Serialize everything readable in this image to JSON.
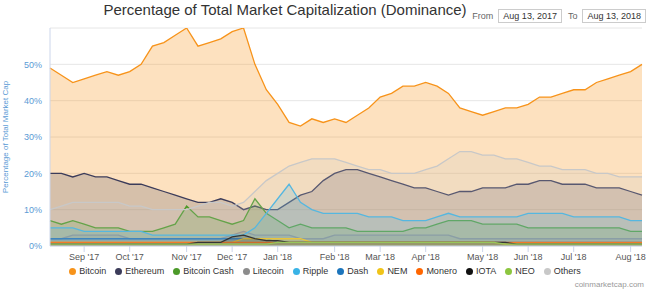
{
  "chart_data": {
    "type": "area",
    "title": "Percentage of Total Market Capitalization (Dominance)",
    "from_label": "From",
    "from_date": "Aug 13, 2017",
    "to_label": "To",
    "to_date": "Aug 13, 2018",
    "y_label": "Percentage of Total Market Cap",
    "credit": "coinmarketcap.com",
    "grid": true,
    "legend": "bottom",
    "categories": [
      null,
      null,
      null,
      "Sep '17",
      null,
      null,
      null,
      "Oct '17",
      null,
      null,
      null,
      null,
      "Nov '17",
      null,
      null,
      null,
      "Dec '17",
      null,
      null,
      null,
      "Jan '18",
      null,
      null,
      null,
      null,
      "Feb '18",
      null,
      null,
      null,
      "Mar '18",
      null,
      null,
      null,
      "Apr '18",
      null,
      null,
      null,
      null,
      "May '18",
      null,
      null,
      null,
      "Jun '18",
      null,
      null,
      null,
      "Jul '18",
      null,
      null,
      null,
      null,
      "Aug '18",
      null
    ],
    "ylim": [
      0,
      60
    ],
    "yticks": [
      {
        "value": 0,
        "label": "0%"
      },
      {
        "value": 10,
        "label": "10%"
      },
      {
        "value": 20,
        "label": "20%"
      },
      {
        "value": 30,
        "label": "30%"
      },
      {
        "value": 40,
        "label": "40%"
      },
      {
        "value": 50,
        "label": "50%"
      }
    ],
    "series": [
      {
        "name": "Bitcoin",
        "color": "#f7931a",
        "values": [
          49,
          47,
          45,
          46,
          47,
          48,
          47,
          48,
          50,
          55,
          56,
          58,
          60,
          55,
          56,
          57,
          59,
          60,
          50,
          43,
          39,
          34,
          33,
          35,
          34,
          35,
          34,
          36,
          38,
          41,
          42,
          44,
          44,
          45,
          44,
          42,
          38,
          37,
          36,
          37,
          38,
          38,
          39,
          41,
          41,
          42,
          43,
          43,
          45,
          46,
          47,
          48,
          50
        ]
      },
      {
        "name": "Ethereum",
        "color": "#3c3c5a",
        "values": [
          20,
          20,
          19,
          20,
          19,
          19,
          18,
          17,
          17,
          16,
          15,
          14,
          13,
          12,
          12,
          13,
          12,
          10,
          11,
          10,
          10,
          12,
          14,
          15,
          18,
          20,
          21,
          21,
          20,
          19,
          18,
          17,
          16,
          16,
          15,
          14,
          15,
          15,
          16,
          16,
          16,
          17,
          17,
          18,
          18,
          17,
          17,
          17,
          16,
          16,
          16,
          15,
          14
        ]
      },
      {
        "name": "Bitcoin Cash",
        "color": "#4c9a2a",
        "values": [
          7,
          6,
          7,
          6,
          5,
          5,
          5,
          4,
          4,
          4,
          5,
          6,
          11,
          8,
          8,
          7,
          6,
          7,
          13,
          9,
          7,
          5,
          6,
          5,
          5,
          5,
          5,
          4,
          4,
          4,
          4,
          4,
          5,
          5,
          6,
          7,
          7,
          7,
          6,
          6,
          6,
          6,
          5,
          5,
          5,
          5,
          5,
          5,
          5,
          5,
          5,
          4,
          4
        ]
      },
      {
        "name": "Litecoin",
        "color": "#8c8c8c",
        "values": [
          2,
          2,
          3,
          3,
          3,
          3,
          3,
          2,
          2,
          2,
          2,
          2,
          2,
          2,
          2,
          2,
          3,
          4,
          3,
          3,
          3,
          3,
          2,
          2,
          2,
          3,
          3,
          3,
          3,
          3,
          3,
          3,
          3,
          3,
          3,
          3,
          2,
          2,
          2,
          2,
          2,
          2,
          2,
          2,
          2,
          2,
          2,
          2,
          2,
          2,
          2,
          2,
          2
        ]
      },
      {
        "name": "Ripple",
        "color": "#39b3e6",
        "values": [
          5,
          5,
          5,
          4,
          4,
          4,
          4,
          4,
          4,
          3,
          3,
          3,
          3,
          3,
          3,
          3,
          3,
          3,
          5,
          9,
          13,
          17,
          12,
          10,
          9,
          9,
          9,
          9,
          8,
          8,
          8,
          7,
          7,
          7,
          8,
          9,
          8,
          8,
          8,
          8,
          8,
          8,
          9,
          9,
          9,
          9,
          8,
          8,
          8,
          8,
          8,
          7,
          7
        ]
      },
      {
        "name": "Dash",
        "color": "#1c75bc",
        "values": [
          2,
          2,
          2,
          2,
          2,
          2,
          2,
          2,
          2,
          2,
          2,
          2,
          2,
          2,
          2,
          2,
          2,
          2,
          2,
          2,
          1,
          1,
          1,
          1,
          1,
          1,
          1,
          1,
          1,
          1,
          1,
          1,
          1,
          1,
          1,
          1,
          1,
          1,
          1,
          1,
          1,
          1,
          1,
          1,
          1,
          1,
          1,
          1,
          1,
          1,
          1,
          1,
          1
        ]
      },
      {
        "name": "NEM",
        "color": "#f0c419",
        "values": [
          1,
          1,
          1,
          1,
          1,
          1,
          1,
          1,
          1,
          1,
          1,
          1,
          1,
          1,
          1,
          1,
          1,
          2,
          2,
          2,
          2,
          2,
          2,
          1,
          1,
          1,
          1,
          1,
          1,
          1,
          1,
          1,
          1,
          1,
          1,
          1,
          1,
          1,
          1,
          1,
          0.5,
          0.5,
          0.5,
          0.5,
          0.5,
          0.5,
          0.5,
          0.5,
          0.5,
          0.5,
          0.5,
          0.5,
          0.5
        ]
      },
      {
        "name": "Monero",
        "color": "#ff6600",
        "values": [
          1,
          1,
          1,
          1,
          1,
          1,
          1,
          1,
          1,
          1,
          1,
          1,
          1,
          1,
          1,
          1,
          1,
          1,
          1,
          1,
          1,
          1,
          1,
          1,
          1,
          1,
          1,
          1,
          1,
          1,
          1,
          1,
          1,
          1,
          1,
          1,
          1,
          1,
          1,
          1,
          1,
          1,
          1,
          1,
          1,
          1,
          1,
          1,
          1,
          1,
          1,
          1,
          1
        ]
      },
      {
        "name": "IOTA",
        "color": "#111111",
        "values": [
          0.5,
          0.5,
          0.5,
          0.5,
          0.5,
          0.5,
          0.5,
          0.5,
          0.5,
          0.5,
          0.5,
          0.5,
          0.5,
          1,
          1,
          1,
          2.5,
          3,
          2,
          1.5,
          1.5,
          1,
          1,
          1,
          1,
          1,
          1,
          1,
          1,
          1,
          1,
          1,
          1,
          1,
          1,
          1,
          1,
          1,
          1,
          1,
          1,
          0.5,
          0.5,
          0.5,
          0.5,
          0.5,
          0.5,
          0.5,
          0.5,
          0.5,
          0.5,
          0.5,
          0.5
        ]
      },
      {
        "name": "NEO",
        "color": "#8cc63f",
        "values": [
          0.5,
          0.5,
          0.5,
          0.5,
          0.5,
          0.5,
          0.5,
          0.5,
          0.5,
          0.5,
          0.5,
          0.5,
          0.5,
          0.5,
          0.5,
          0.5,
          0.5,
          0.5,
          0.5,
          0.5,
          1,
          1,
          1,
          1,
          1,
          1,
          1,
          1,
          1,
          1,
          1,
          1,
          1,
          1,
          1,
          1,
          1,
          1,
          1,
          1,
          0.5,
          0.5,
          0.5,
          0.5,
          0.5,
          0.5,
          0.5,
          0.5,
          0.5,
          0.5,
          0.5,
          0.5,
          0.5
        ]
      },
      {
        "name": "Others",
        "color": "#c8c8c8",
        "values": [
          10,
          11,
          12,
          12,
          12,
          12,
          12,
          11,
          11,
          10,
          10,
          10,
          10,
          11,
          12,
          12,
          11,
          12,
          15,
          18,
          20,
          22,
          23,
          24,
          24,
          24,
          23,
          22,
          21,
          21,
          20,
          20,
          20,
          21,
          22,
          24,
          26,
          26,
          25,
          25,
          24,
          24,
          23,
          22,
          22,
          21,
          21,
          21,
          20,
          20,
          19,
          19,
          19
        ]
      }
    ]
  }
}
